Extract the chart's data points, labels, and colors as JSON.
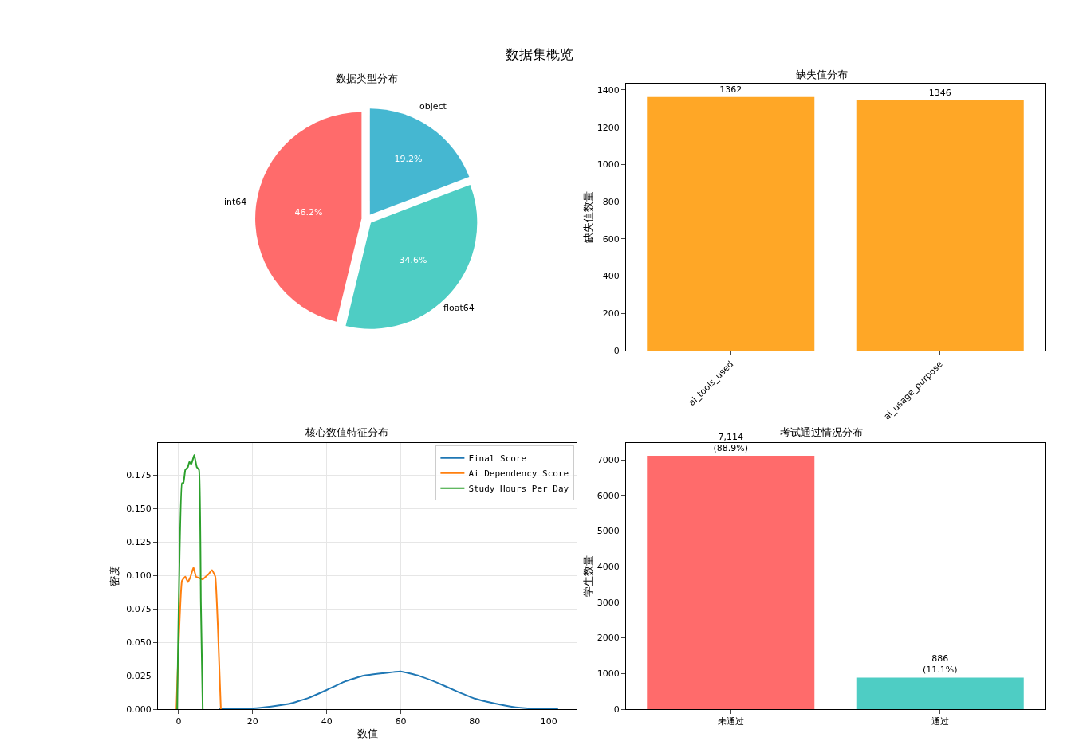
{
  "chart_data": [
    {
      "type": "pie",
      "title": "数据类型分布",
      "annotations": [
        "数据集概览"
      ],
      "categories": [
        "int64",
        "float64",
        "object"
      ],
      "values": [
        46.2,
        34.6,
        19.2
      ],
      "colors": [
        "#ff6b6b",
        "#4ecdc4",
        "#45b7d1"
      ],
      "value_labels": [
        "46.2%",
        "34.6%",
        "19.2%"
      ],
      "legend": false
    },
    {
      "type": "bar",
      "title": "缺失值分布",
      "ylabel": "缺失值数量",
      "categories": [
        "ai_tools_used",
        "ai_usage_purpose"
      ],
      "values": [
        1362,
        1346
      ],
      "color": "#ffa726",
      "data_labels": true,
      "ylim": [
        0,
        1434
      ],
      "yticks": [
        0,
        200,
        400,
        600,
        800,
        1000,
        1200,
        1400
      ],
      "grid": false,
      "legend": false
    },
    {
      "type": "line",
      "title": "核心数值特征分布",
      "xlabel": "数值",
      "ylabel": "密度",
      "xlim": [
        -5.6,
        107.5
      ],
      "xticks": [
        0,
        20,
        40,
        60,
        80,
        100
      ],
      "ylim": [
        0,
        0.199
      ],
      "yticks": [
        {
          "value": 0,
          "label": "0.000"
        },
        {
          "value": 0.025,
          "label": "0.025"
        },
        {
          "value": 0.05,
          "label": "0.050"
        },
        {
          "value": 0.075,
          "label": "0.075"
        },
        {
          "value": 0.1,
          "label": "0.100"
        },
        {
          "value": 0.125,
          "label": "0.125"
        },
        {
          "value": 0.15,
          "label": "0.150"
        },
        {
          "value": 0.175,
          "label": "0.175"
        }
      ],
      "grid": true,
      "legend": "top right",
      "marker": "none",
      "line_style": "solid",
      "series": [
        {
          "name": "Final Score",
          "color": "#1f77b4",
          "x": [
            11,
            20,
            25,
            30,
            35,
            40,
            45,
            50,
            55,
            60,
            65,
            70,
            75,
            80,
            85,
            90,
            95,
            100,
            102.5
          ],
          "values": [
            0,
            0.0006,
            0.002,
            0.004,
            0.0083,
            0.0143,
            0.0208,
            0.025,
            0.0268,
            0.0282,
            0.0248,
            0.0196,
            0.0135,
            0.0079,
            0.0045,
            0.0018,
            0.0005,
            0.0001,
            0
          ]
        },
        {
          "name": "Ai Dependency Score",
          "color": "#ff7f0e",
          "x": [
            -0.6,
            0.9,
            1.8,
            2.5,
            3.2,
            4.0,
            4.7,
            5.6,
            6.5,
            7.3,
            8.1,
            9.0,
            9.9,
            10.6,
            11.4
          ],
          "values": [
            0,
            0.096,
            0.099,
            0.095,
            0.099,
            0.106,
            0.099,
            0.098,
            0.097,
            0.099,
            0.101,
            0.104,
            0.099,
            0.061,
            0
          ]
        },
        {
          "name": "Study Hours Per Day",
          "color": "#2ca02c",
          "x": [
            -0.4,
            0.9,
            1.3,
            1.8,
            2.5,
            2.9,
            3.4,
            4.2,
            4.9,
            5.5,
            6.0,
            6.5
          ],
          "values": [
            0,
            0.169,
            0.169,
            0.179,
            0.181,
            0.185,
            0.183,
            0.19,
            0.181,
            0.179,
            0.08,
            0
          ]
        }
      ]
    },
    {
      "type": "bar",
      "title": "考试通过情况分布",
      "ylabel": "学生数量",
      "categories": [
        "未通过",
        "通过"
      ],
      "values": [
        7114,
        886
      ],
      "colors": [
        "#ff6b6b",
        "#4ecdc4"
      ],
      "value_labels": [
        "7,114\n(88.9%)",
        "886\n(11.1%)"
      ],
      "ylim": [
        0,
        7470
      ],
      "yticks": [
        0,
        1000,
        2000,
        3000,
        4000,
        5000,
        6000,
        7000
      ],
      "grid": false,
      "legend": false
    }
  ]
}
